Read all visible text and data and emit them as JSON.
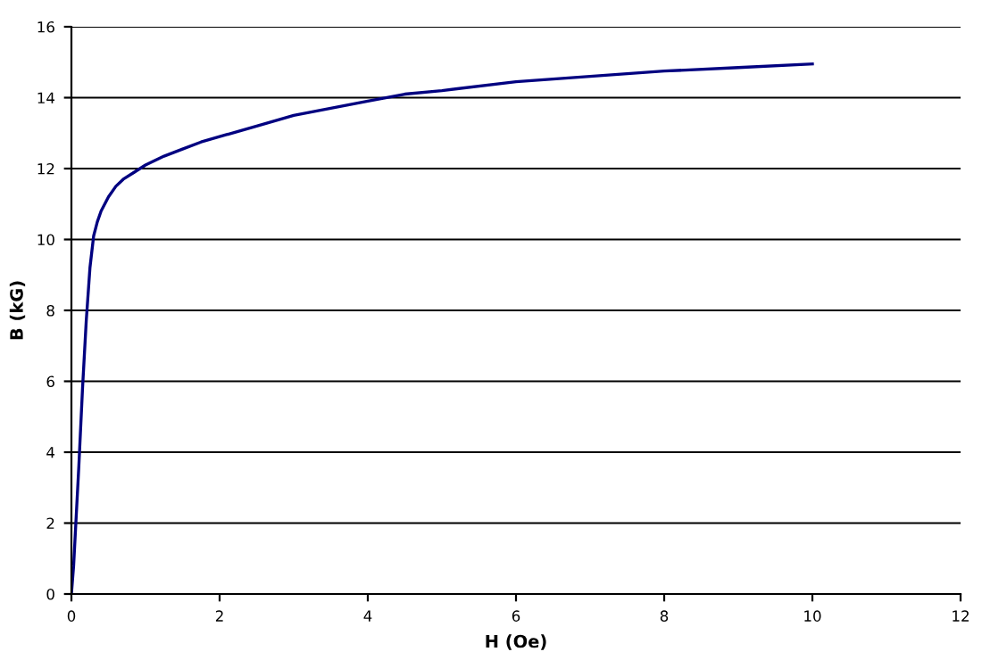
{
  "chart_data": {
    "type": "line",
    "xlabel": "H (Oe)",
    "ylabel": "B (kG)",
    "x": [
      0,
      0.03,
      0.06,
      0.1,
      0.15,
      0.2,
      0.25,
      0.3,
      0.35,
      0.4,
      0.5,
      0.6,
      0.7,
      0.85,
      1,
      1.25,
      1.5,
      1.75,
      2,
      2.5,
      3,
      3.5,
      4,
      4.5,
      5,
      6,
      7,
      8,
      9,
      10
    ],
    "series": [
      {
        "color": "#000080",
        "values": [
          0,
          0.8,
          2,
          3.6,
          5.8,
          7.7,
          9.2,
          10.1,
          10.5,
          10.8,
          11.2,
          11.5,
          11.7,
          11.9,
          12.1,
          12.35,
          12.55,
          12.75,
          12.9,
          13.2,
          13.5,
          13.7,
          13.9,
          14.1,
          14.2,
          14.45,
          14.6,
          14.75,
          14.85,
          14.95
        ]
      }
    ],
    "xlim": [
      0,
      12
    ],
    "ylim": [
      0,
      16
    ],
    "xticks": [
      0,
      2,
      4,
      6,
      8,
      10,
      12
    ],
    "yticks": [
      0,
      2,
      4,
      6,
      8,
      10,
      12,
      14,
      16
    ],
    "grid": "y",
    "legend": false,
    "marker": "none",
    "line_style": "solid"
  }
}
